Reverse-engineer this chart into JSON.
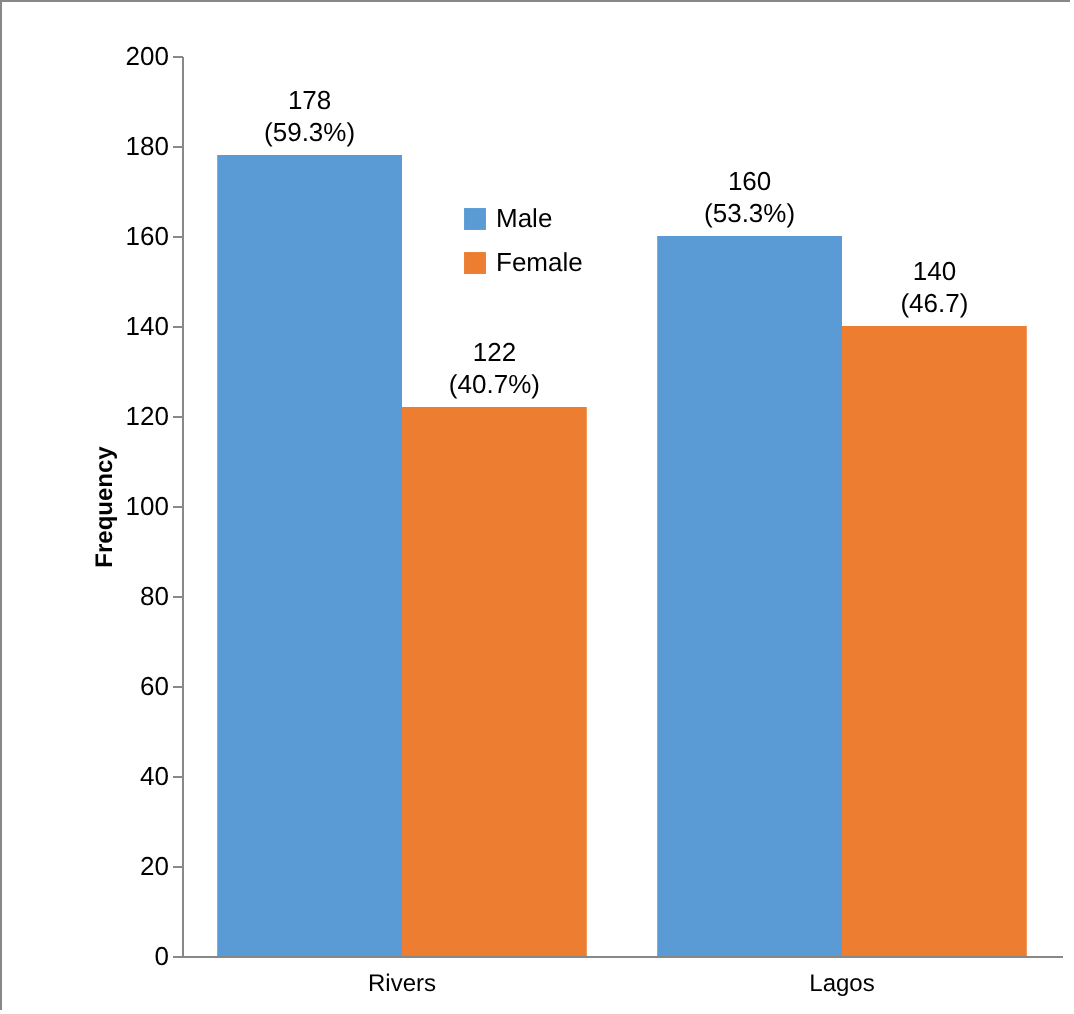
{
  "chart_data": {
    "type": "bar",
    "ylabel": "Frequency",
    "categories": [
      "Rivers",
      "Lagos"
    ],
    "series": [
      {
        "name": "Male",
        "color": "#5b9bd5",
        "values": [
          178,
          160
        ],
        "value_labels": [
          "178\n(59.3%)",
          "160\n(53.3%)"
        ]
      },
      {
        "name": "Female",
        "color": "#ed7d31",
        "values": [
          122,
          140
        ],
        "value_labels": [
          "122\n(40.7%)",
          "140\n(46.7)"
        ]
      }
    ],
    "ylim": [
      0,
      200
    ],
    "yticks": [
      0,
      20,
      40,
      60,
      80,
      100,
      120,
      140,
      160,
      180,
      200
    ],
    "grid": false,
    "legend": "top"
  }
}
